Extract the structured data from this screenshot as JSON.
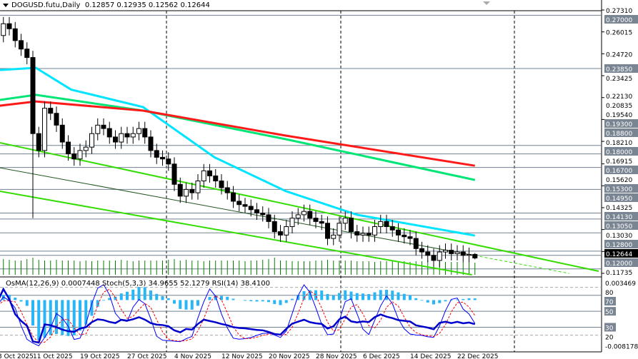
{
  "header": {
    "symbol": "DOGUSD.futu,Daily",
    "open": "0.12857",
    "high": "0.12935",
    "low": "0.12562",
    "close": "0.12644"
  },
  "indicator_title": "OsMA(12,26,9) 0.0007448  Stoch(5,3,3) 34.9655 52.1279  RSI(14) 38.4100",
  "colors": {
    "bull_candle": "#ffffff",
    "bear_candle": "#000000",
    "ma_fast": "#00e5ff",
    "ma_mid": "#00e676",
    "ma_slow": "#ff1a1a",
    "channel": "#33dd00",
    "volume": "#008000",
    "osma": "#29b6f6",
    "stoch_main": "#0000ff",
    "stoch_signal": "#ff0000",
    "rsi": "#0000cc",
    "level_label_bg": "#7a8593"
  },
  "chart_data": {
    "type": "candlestick",
    "symbol": "DOGUSD.futu",
    "timeframe": "Daily",
    "start_date": "3 Oct 2025",
    "closes": [
      0.255,
      0.262,
      0.258,
      0.265,
      0.262,
      0.255,
      0.25,
      0.245,
      0.2,
      0.19,
      0.215,
      0.212,
      0.205,
      0.195,
      0.188,
      0.185,
      0.19,
      0.192,
      0.2,
      0.205,
      0.203,
      0.198,
      0.195,
      0.2,
      0.198,
      0.2,
      0.203,
      0.198,
      0.19,
      0.186,
      0.185,
      0.182,
      0.17,
      0.163,
      0.167,
      0.165,
      0.172,
      0.178,
      0.175,
      0.172,
      0.168,
      0.165,
      0.16,
      0.158,
      0.157,
      0.155,
      0.153,
      0.152,
      0.148,
      0.142,
      0.14,
      0.145,
      0.15,
      0.152,
      0.154,
      0.15,
      0.148,
      0.147,
      0.138,
      0.14,
      0.147,
      0.15,
      0.142,
      0.14,
      0.141,
      0.14,
      0.145,
      0.148,
      0.145,
      0.143,
      0.14,
      0.139,
      0.138,
      0.132,
      0.13,
      0.128,
      0.125,
      0.13,
      0.131,
      0.129,
      0.13,
      0.128,
      0.12857,
      0.12644
    ],
    "last_bar": {
      "open": 0.12857,
      "high": 0.12935,
      "low": 0.12562,
      "close": 0.12644
    },
    "volumes": [
      20,
      21,
      20,
      22,
      21,
      20,
      20,
      22,
      24,
      21,
      20,
      20,
      21,
      20,
      20,
      20,
      19,
      20,
      19,
      20,
      20,
      20,
      20,
      21,
      20,
      19,
      20,
      20,
      20,
      20,
      20,
      21,
      22,
      20,
      21,
      20,
      20,
      19,
      20,
      20,
      20,
      20,
      20,
      20,
      19,
      20,
      20,
      21,
      22,
      24,
      20,
      20,
      19,
      19,
      19,
      19,
      20,
      20,
      21,
      20,
      20,
      20,
      20,
      19,
      19,
      19,
      18,
      19,
      19,
      19,
      19,
      19,
      18,
      19,
      19,
      20,
      19,
      19,
      18,
      18,
      18,
      18,
      18,
      17
    ],
    "moving_averages": [
      {
        "color_key": "ma_fast",
        "points": [
          [
            2.4,
            0.2376
          ],
          [
            8.5,
            0.2389
          ],
          [
            14.5,
            0.226
          ],
          [
            26.7,
            0.2157
          ],
          [
            38.8,
            0.186
          ],
          [
            50.9,
            0.166
          ],
          [
            63,
            0.152
          ],
          [
            83,
            0.1397
          ]
        ]
      },
      {
        "color_key": "ma_mid",
        "points": [
          [
            2.4,
            0.2199
          ],
          [
            8.5,
            0.2229
          ],
          [
            26.7,
            0.2136
          ],
          [
            50.9,
            0.1967
          ],
          [
            83,
            0.1726
          ]
        ]
      },
      {
        "color_key": "ma_slow",
        "points": [
          [
            2.4,
            0.2165
          ],
          [
            8.5,
            0.219
          ],
          [
            26.7,
            0.2136
          ],
          [
            50.9,
            0.1988
          ],
          [
            83,
            0.181
          ]
        ]
      }
    ],
    "channel_lines": [
      {
        "style": "solid",
        "points": [
          [
            2.4,
            0.1946
          ],
          [
            104,
            0.1186
          ]
        ]
      },
      {
        "style": "thin",
        "points": [
          [
            2.4,
            0.1798
          ],
          [
            83,
            0.1279
          ]
        ]
      },
      {
        "style": "dashed",
        "points": [
          [
            83,
            0.1279
          ],
          [
            99,
            0.1173
          ]
        ]
      },
      {
        "style": "solid",
        "points": [
          [
            2.4,
            0.1659
          ],
          [
            82.5,
            0.1165
          ]
        ]
      }
    ],
    "price_levels": [
      "0.27000",
      "0.23850",
      "0.19300",
      "0.18800",
      "0.18000",
      "0.16700",
      "0.15300",
      "0.14950",
      "0.14130",
      "0.13050",
      "0.12800",
      "0.12000"
    ],
    "current_price": "0.12644",
    "y_ticks": [
      "0.27310",
      "0.26015",
      "0.24720",
      "0.23425",
      "0.22130",
      "0.20835",
      "0.19540",
      "0.18210",
      "0.16915",
      "0.15620",
      "0.14325",
      "0.13030",
      "0.11735"
    ],
    "ylim": [
      0.11735,
      0.2731
    ],
    "x_ticks": [
      {
        "label": "3 Oct 2025",
        "index": 0
      },
      {
        "label": "11 Oct 2025",
        "index": 8
      },
      {
        "label": "19 Oct 2025",
        "index": 16
      },
      {
        "label": "27 Oct 2025",
        "index": 24
      },
      {
        "label": "4 Nov 2025",
        "index": 32
      },
      {
        "label": "12 Nov 2025",
        "index": 40
      },
      {
        "label": "20 Nov 2025",
        "index": 48
      },
      {
        "label": "28 Nov 2025",
        "index": 56
      },
      {
        "label": "6 Dec 2025",
        "index": 64
      },
      {
        "label": "14 Dec 2025",
        "index": 72
      },
      {
        "label": "22 Dec 2025",
        "index": 80
      }
    ],
    "indicator_panel": {
      "osma_range": [
        "0.003469",
        "-0.008178"
      ],
      "osma_top": 0.003469,
      "osma_bottom": -0.008178,
      "levels": [
        "80",
        "70",
        "50",
        "30",
        "20"
      ],
      "labeled_levels": [
        "70",
        "50",
        "30"
      ]
    }
  }
}
